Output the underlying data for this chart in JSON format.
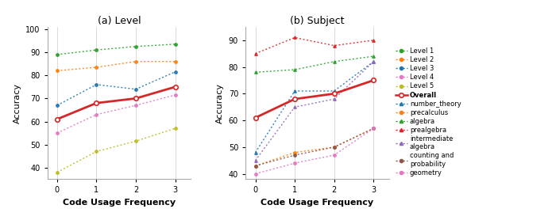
{
  "x": [
    0,
    1,
    2,
    3
  ],
  "panel_a": {
    "title": "(a) Level",
    "ylabel": "Accuracy",
    "xlabel": "Code Usage Frequency",
    "ylim": [
      35,
      101
    ],
    "yticks": [
      40,
      50,
      60,
      70,
      80,
      90,
      100
    ],
    "series": [
      {
        "label": "Level 1",
        "color": "#2ca02c",
        "values": [
          89,
          91,
          92.5,
          93.5
        ],
        "marker": "o",
        "linestyle": "dotted"
      },
      {
        "label": "Level 2",
        "color": "#ff7f0e",
        "values": [
          82,
          83.5,
          86,
          86
        ],
        "marker": "o",
        "linestyle": "dotted"
      },
      {
        "label": "Level 3",
        "color": "#1f77b4",
        "values": [
          67,
          76,
          74,
          81.5
        ],
        "marker": "o",
        "linestyle": "dotted"
      },
      {
        "label": "Level 4",
        "color": "#e377c2",
        "values": [
          55,
          63,
          67,
          71.5
        ],
        "marker": "o",
        "linestyle": "dotted"
      },
      {
        "label": "Level 5",
        "color": "#bcbd22",
        "values": [
          38,
          47,
          51.5,
          57
        ],
        "marker": "o",
        "linestyle": "dotted"
      },
      {
        "label": "Overall",
        "color": "#d62728",
        "values": [
          61,
          68,
          70,
          75
        ],
        "marker": "o",
        "linestyle": "solid",
        "linewidth": 2.0
      }
    ]
  },
  "panel_b": {
    "title": "(b) Subject",
    "ylabel": "Accuracy",
    "xlabel": "Code Usage Frequency",
    "ylim": [
      38,
      95
    ],
    "yticks": [
      40,
      50,
      60,
      70,
      80,
      90
    ],
    "series": [
      {
        "label": "number_theory",
        "color": "#1f77b4",
        "values": [
          48,
          71,
          71,
          82
        ],
        "marker": "^",
        "linestyle": "dotted"
      },
      {
        "label": "precalculus",
        "color": "#ff7f0e",
        "values": [
          43,
          48,
          50,
          57
        ],
        "marker": "o",
        "linestyle": "dotted"
      },
      {
        "label": "algebra",
        "color": "#2ca02c",
        "values": [
          78,
          79,
          82,
          84
        ],
        "marker": "^",
        "linestyle": "dotted"
      },
      {
        "label": "prealgebra",
        "color": "#d62728",
        "values": [
          85,
          91,
          88,
          90
        ],
        "marker": "^",
        "linestyle": "dotted"
      },
      {
        "label": "intermediate_algebra",
        "color": "#9467bd",
        "values": [
          45,
          65,
          68,
          82
        ],
        "marker": "^",
        "linestyle": "dotted"
      },
      {
        "label": "counting and\nprobability",
        "color": "#8c564b",
        "values": [
          43,
          47,
          50,
          57
        ],
        "marker": "o",
        "linestyle": "dotted"
      },
      {
        "label": "geometry",
        "color": "#e377c2",
        "values": [
          40,
          44,
          47,
          57
        ],
        "marker": "o",
        "linestyle": "dotted"
      },
      {
        "label": "Overall",
        "color": "#d62728",
        "values": [
          61,
          68,
          70,
          75
        ],
        "marker": "o",
        "linestyle": "solid",
        "linewidth": 2.0
      }
    ]
  },
  "legend_items": [
    {
      "label": "Level 1",
      "color": "#2ca02c",
      "linestyle": "dotted",
      "marker": "o"
    },
    {
      "label": "Level 2",
      "color": "#ff7f0e",
      "linestyle": "dotted",
      "marker": "o"
    },
    {
      "label": "Level 3",
      "color": "#1f77b4",
      "linestyle": "dotted",
      "marker": "o"
    },
    {
      "label": "Level 4",
      "color": "#e377c2",
      "linestyle": "dotted",
      "marker": "o"
    },
    {
      "label": "Level 5",
      "color": "#bcbd22",
      "linestyle": "dotted",
      "marker": "o"
    },
    {
      "label": "Overall",
      "color": "#d62728",
      "linestyle": "solid",
      "marker": "o",
      "bold": true
    },
    {
      "label": "number_theory",
      "color": "#1f77b4",
      "linestyle": "dotted",
      "marker": "^"
    },
    {
      "label": "precalculus",
      "color": "#ff7f0e",
      "linestyle": "dotted",
      "marker": "o"
    },
    {
      "label": "algebra",
      "color": "#2ca02c",
      "linestyle": "dotted",
      "marker": "^"
    },
    {
      "label": "prealgebra",
      "color": "#d62728",
      "linestyle": "dotted",
      "marker": "^"
    },
    {
      "label": "intermediate\nalgebra",
      "color": "#9467bd",
      "linestyle": "dotted",
      "marker": "^"
    },
    {
      "label": "counting and\nprobability",
      "color": "#8c564b",
      "linestyle": "dotted",
      "marker": "o"
    },
    {
      "label": "geometry",
      "color": "#e377c2",
      "linestyle": "dotted",
      "marker": "o"
    }
  ]
}
